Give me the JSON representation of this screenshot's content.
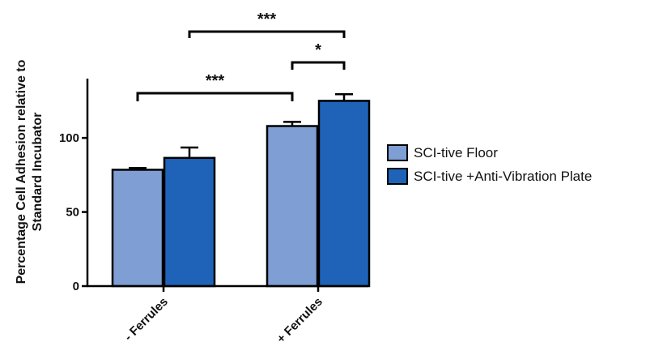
{
  "chart_data": {
    "type": "bar",
    "title": "",
    "xlabel": "",
    "ylabel": [
      "Percentage Cell Adhesion relative to",
      "Standard Incubator"
    ],
    "ylim": [
      0,
      140
    ],
    "yticks": [
      0,
      50,
      100
    ],
    "categories": [
      "- Ferrules",
      "+ Ferrules"
    ],
    "series": [
      {
        "name": "SCI-tive Floor",
        "color": "#7f9fd4",
        "values": [
          78.5,
          108
        ],
        "errors": [
          1.2,
          2.8
        ]
      },
      {
        "name": "SCI-tive +Anti-Vibration Plate",
        "color": "#1f63b8",
        "values": [
          86.5,
          125
        ],
        "errors": [
          7,
          4.5
        ]
      }
    ],
    "legend_position": "right",
    "grid": false,
    "significance": [
      {
        "label": "***",
        "from": [
          0,
          0
        ],
        "to": [
          1,
          0
        ]
      },
      {
        "label": "*",
        "from": [
          1,
          0
        ],
        "to": [
          1,
          1
        ]
      },
      {
        "label": "***",
        "from": [
          0,
          1
        ],
        "to": [
          1,
          1
        ]
      }
    ]
  }
}
